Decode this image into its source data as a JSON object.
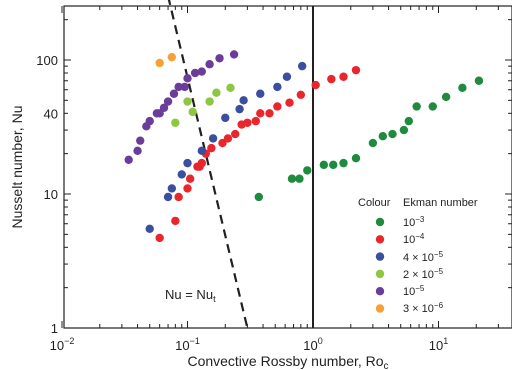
{
  "chart_data": {
    "type": "scatter",
    "title": "",
    "xlabel_main": "Convective Rossby number, Ro",
    "xlabel_sub": "c",
    "ylabel": "Nusselt number, Nu",
    "xscale": "log",
    "yscale": "log",
    "xlim": [
      0.01,
      25
    ],
    "ylim": [
      1,
      200
    ],
    "x_ticks": [
      {
        "value": 0.01,
        "base": "10",
        "exp": "−2"
      },
      {
        "value": 0.1,
        "base": "10",
        "exp": "−1"
      },
      {
        "value": 1,
        "base": "10",
        "exp": "0"
      },
      {
        "value": 10,
        "base": "10",
        "exp": "1"
      }
    ],
    "y_ticks": [
      {
        "value": 1,
        "label": "1"
      },
      {
        "value": 10,
        "label": "10"
      },
      {
        "value": 40,
        "label": "40"
      },
      {
        "value": 100,
        "label": "100"
      }
    ],
    "vertical_line": {
      "x": 1
    },
    "fit_line": {
      "label_main": "Nu = Nu",
      "label_sub": "t",
      "style": "dashed",
      "points": [
        [
          0.07,
          300
        ],
        [
          0.3,
          1
        ]
      ]
    },
    "legend": {
      "position": "right",
      "header_colour": "Colour",
      "header_ekman": "Ekman number"
    },
    "series": [
      {
        "name_base": "10",
        "name_exp": "−3",
        "name_prefix": "",
        "color": "#1f8b3e",
        "points": [
          [
            0.37,
            9.5
          ],
          [
            0.68,
            13
          ],
          [
            0.78,
            13
          ],
          [
            0.9,
            15
          ],
          [
            1.22,
            16.5
          ],
          [
            1.45,
            16.5
          ],
          [
            1.75,
            17
          ],
          [
            2.2,
            18.5
          ],
          [
            3.0,
            24
          ],
          [
            3.6,
            27
          ],
          [
            4.3,
            28
          ],
          [
            5.3,
            30
          ],
          [
            5.8,
            35
          ],
          [
            6.7,
            45
          ],
          [
            9.0,
            45
          ],
          [
            11.5,
            53
          ],
          [
            15.5,
            62
          ],
          [
            21.0,
            70
          ]
        ]
      },
      {
        "name_base": "10",
        "name_exp": "−4",
        "name_prefix": "",
        "color": "#e8262b",
        "points": [
          [
            0.06,
            4.7
          ],
          [
            0.08,
            6.3
          ],
          [
            0.085,
            9.5
          ],
          [
            0.1,
            11
          ],
          [
            0.105,
            13
          ],
          [
            0.12,
            16
          ],
          [
            0.125,
            16
          ],
          [
            0.13,
            17
          ],
          [
            0.14,
            20
          ],
          [
            0.155,
            22
          ],
          [
            0.19,
            24
          ],
          [
            0.21,
            26
          ],
          [
            0.24,
            28
          ],
          [
            0.27,
            33
          ],
          [
            0.3,
            34
          ],
          [
            0.35,
            35
          ],
          [
            0.38,
            40
          ],
          [
            0.45,
            40
          ],
          [
            0.52,
            45
          ],
          [
            0.65,
            48
          ],
          [
            0.8,
            55
          ],
          [
            1.05,
            65
          ],
          [
            1.4,
            72
          ],
          [
            1.75,
            75
          ],
          [
            2.2,
            84
          ]
        ]
      },
      {
        "name_base": "10",
        "name_exp": "",
        "name_prefix": "4 × ",
        "name_exp2": "−5",
        "color": "#3a4fa0",
        "points": [
          [
            0.05,
            5.5
          ],
          [
            0.07,
            9.5
          ],
          [
            0.075,
            11
          ],
          [
            0.09,
            14
          ],
          [
            0.1,
            17
          ],
          [
            0.13,
            21
          ],
          [
            0.16,
            26
          ],
          [
            0.2,
            37
          ],
          [
            0.26,
            43
          ],
          [
            0.28,
            50
          ],
          [
            0.38,
            56
          ],
          [
            0.52,
            63
          ],
          [
            0.62,
            75
          ],
          [
            0.82,
            90
          ]
        ]
      },
      {
        "name_base": "10",
        "name_exp": "",
        "name_prefix": "2 × ",
        "name_exp2": "−5",
        "color": "#8dc63f",
        "points": [
          [
            0.08,
            34
          ],
          [
            0.1,
            49
          ],
          [
            0.11,
            41
          ],
          [
            0.15,
            49
          ],
          [
            0.17,
            57
          ],
          [
            0.22,
            62
          ]
        ]
      },
      {
        "name_base": "10",
        "name_exp": "−5",
        "name_prefix": "",
        "color": "#6a3d9a",
        "points": [
          [
            0.034,
            18
          ],
          [
            0.04,
            21
          ],
          [
            0.042,
            25
          ],
          [
            0.047,
            32
          ],
          [
            0.05,
            35
          ],
          [
            0.057,
            40
          ],
          [
            0.06,
            40
          ],
          [
            0.065,
            44
          ],
          [
            0.07,
            49
          ],
          [
            0.078,
            56
          ],
          [
            0.085,
            63
          ],
          [
            0.095,
            63
          ],
          [
            0.1,
            73
          ],
          [
            0.115,
            80
          ],
          [
            0.13,
            82
          ],
          [
            0.15,
            93
          ],
          [
            0.18,
            103
          ],
          [
            0.235,
            110
          ]
        ]
      },
      {
        "name_base": "10",
        "name_exp": "",
        "name_prefix": "3 × ",
        "name_exp2": "−6",
        "color": "#f7a034",
        "points": [
          [
            0.06,
            95
          ],
          [
            0.075,
            105
          ]
        ]
      }
    ]
  },
  "legend_labels": {
    "s0": "10",
    "s0e": "−3",
    "s1": "10",
    "s1e": "−4",
    "s2": "4 × 10",
    "s2e": "−5",
    "s3": "2 × 10",
    "s3e": "−5",
    "s4": "10",
    "s4e": "−5",
    "s5": "3 × 10",
    "s5e": "−6"
  }
}
